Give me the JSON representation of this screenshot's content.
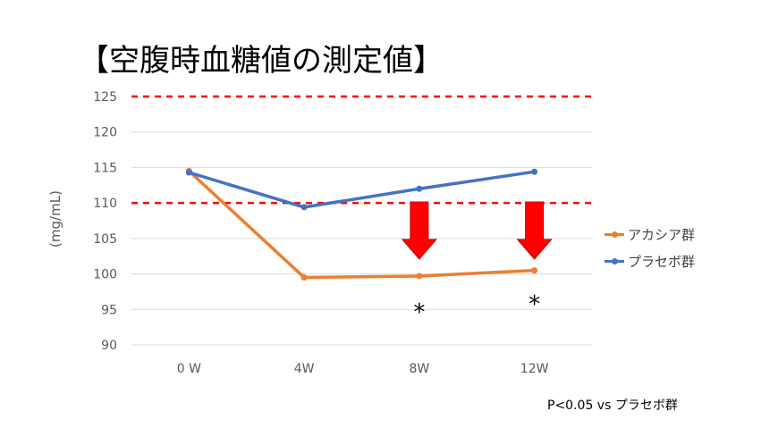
{
  "title": "【空腹時血糖値の測定値】",
  "footnote": "P<0.05 vs プラセボ群",
  "colors": {
    "acacia": "#ED7D31",
    "placebo": "#4472C4",
    "threshold": "#FF0000",
    "arrow": "#FF0000",
    "grid": "#D9D9D9",
    "tick": "#595959"
  },
  "chart_data": {
    "type": "line",
    "title": "【空腹時血糖値の測定値】",
    "xlabel": "",
    "ylabel": "(mg/mL)",
    "categories": [
      "0 W",
      "4W",
      "8W",
      "12W"
    ],
    "ylim": [
      90,
      125
    ],
    "yticks": [
      90,
      95,
      100,
      105,
      110,
      115,
      120,
      125
    ],
    "grid": true,
    "legend_position": "right",
    "series": [
      {
        "name": "アカシア群",
        "color": "#ED7D31",
        "values": [
          114.5,
          99.5,
          99.7,
          100.5
        ]
      },
      {
        "name": "プラセボ群",
        "color": "#4472C4",
        "values": [
          114.3,
          109.4,
          112.0,
          114.4
        ]
      }
    ],
    "reference_lines": [
      125,
      110
    ],
    "arrows_at": [
      "8W",
      "12W"
    ],
    "significance_markers": [
      {
        "category": "8W",
        "label": "*"
      },
      {
        "category": "12W",
        "label": "*"
      }
    ]
  }
}
